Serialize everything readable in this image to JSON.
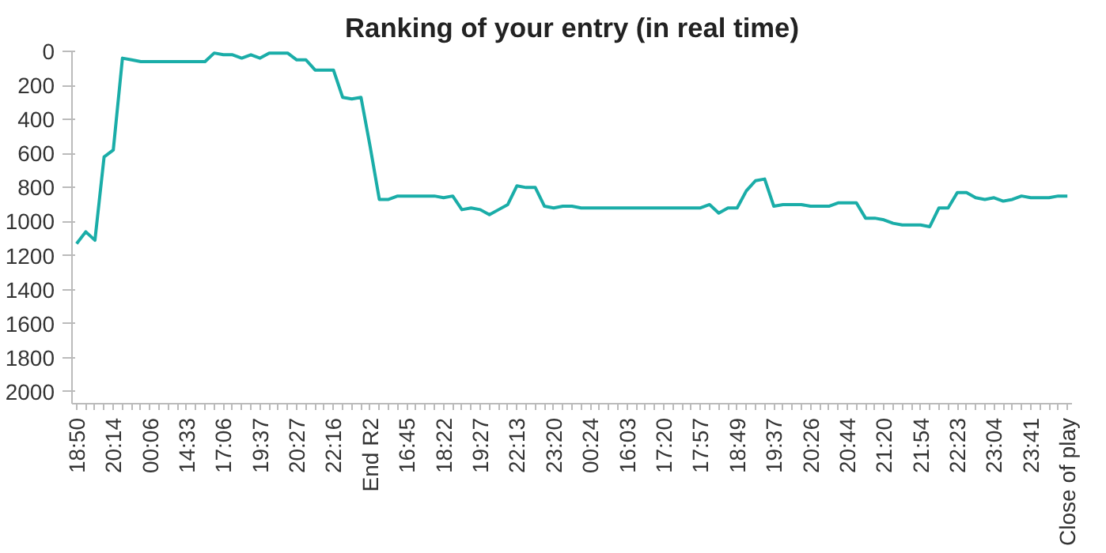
{
  "chart_data": {
    "type": "line",
    "title": "Ranking of your entry (in real time)",
    "categories": [
      "18:50",
      null,
      null,
      null,
      "20:14",
      null,
      null,
      null,
      "00:06",
      null,
      null,
      null,
      "14:33",
      null,
      null,
      null,
      "17:06",
      null,
      null,
      null,
      "19:37",
      null,
      null,
      null,
      "20:27",
      null,
      null,
      null,
      "22:16",
      null,
      null,
      null,
      "End R2",
      null,
      null,
      null,
      "16:45",
      null,
      null,
      null,
      "18:22",
      null,
      null,
      null,
      "19:27",
      null,
      null,
      null,
      "22:13",
      null,
      null,
      null,
      "23:20",
      null,
      null,
      null,
      "00:24",
      null,
      null,
      null,
      "16:03",
      null,
      null,
      null,
      "17:20",
      null,
      null,
      null,
      "17:57",
      null,
      null,
      null,
      "18:49",
      null,
      null,
      null,
      "19:37",
      null,
      null,
      null,
      "20:26",
      null,
      null,
      null,
      "20:44",
      null,
      null,
      null,
      "21:20",
      null,
      null,
      null,
      "21:54",
      null,
      null,
      null,
      "22:23",
      null,
      null,
      null,
      "23:04",
      null,
      null,
      null,
      "23:41",
      null,
      null,
      null,
      "Close of play"
    ],
    "series": [
      {
        "color": "#1aada8",
        "values": [
          1130,
          1060,
          1110,
          620,
          580,
          40,
          50,
          60,
          60,
          60,
          60,
          60,
          60,
          60,
          60,
          10,
          20,
          20,
          40,
          20,
          40,
          10,
          10,
          10,
          50,
          50,
          110,
          110,
          110,
          270,
          280,
          270,
          560,
          870,
          870,
          850,
          850,
          850,
          850,
          850,
          860,
          850,
          930,
          920,
          930,
          960,
          930,
          900,
          790,
          800,
          800,
          910,
          920,
          910,
          910,
          920,
          920,
          920,
          920,
          920,
          920,
          920,
          920,
          920,
          920,
          920,
          920,
          920,
          920,
          900,
          950,
          920,
          920,
          820,
          760,
          750,
          910,
          900,
          900,
          900,
          910,
          910,
          910,
          890,
          890,
          890,
          980,
          980,
          990,
          1010,
          1020,
          1020,
          1020,
          1030,
          920,
          920,
          830,
          830,
          860,
          870,
          860,
          880,
          870,
          850,
          860,
          860,
          860,
          850,
          850
        ]
      }
    ],
    "ylim": [
      2070,
      0
    ],
    "yticks": [
      0,
      200,
      400,
      600,
      800,
      1000,
      1200,
      1400,
      1600,
      1800,
      2000
    ],
    "grid": false,
    "marker": "none",
    "line_style": "solid"
  }
}
